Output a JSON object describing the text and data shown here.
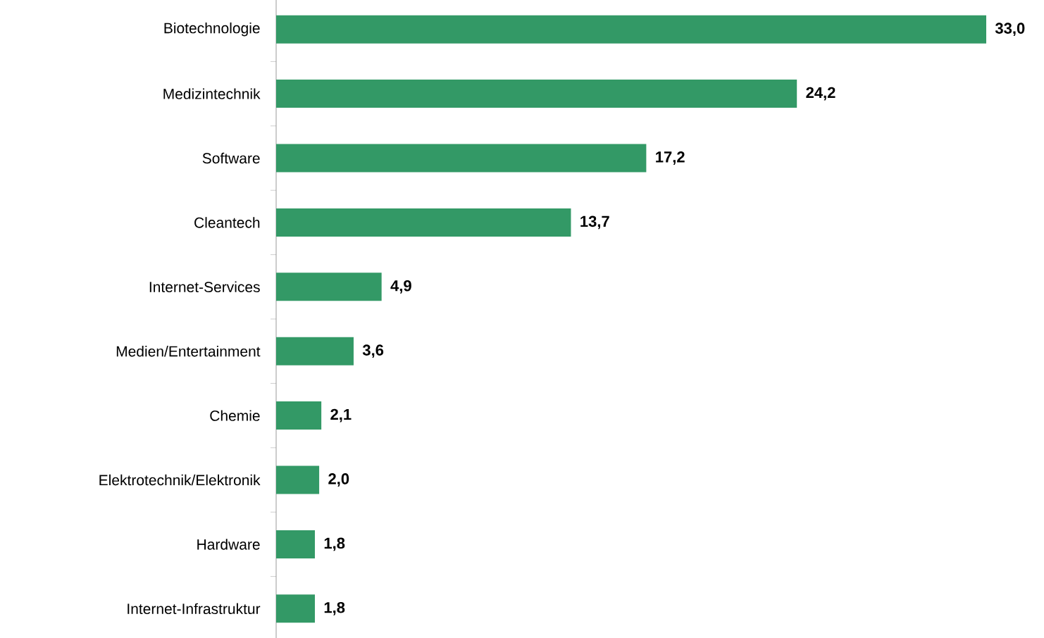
{
  "chart_data": {
    "type": "bar",
    "orientation": "horizontal",
    "categories": [
      "Biotechnologie",
      "Medizintechnik",
      "Software",
      "Cleantech",
      "Internet-Services",
      "Medien/Entertainment",
      "Chemie",
      "Elektrotechnik/Elektronik",
      "Hardware",
      "Internet-Infrastruktur"
    ],
    "values": [
      33.0,
      24.2,
      17.2,
      13.7,
      4.9,
      3.6,
      2.1,
      2.0,
      1.8,
      1.8
    ],
    "value_labels": [
      "33,0",
      "24,2",
      "17,2",
      "13,7",
      "4,9",
      "3,6",
      "2,1",
      "2,0",
      "1,8",
      "1,8"
    ],
    "color": "#339966"
  }
}
